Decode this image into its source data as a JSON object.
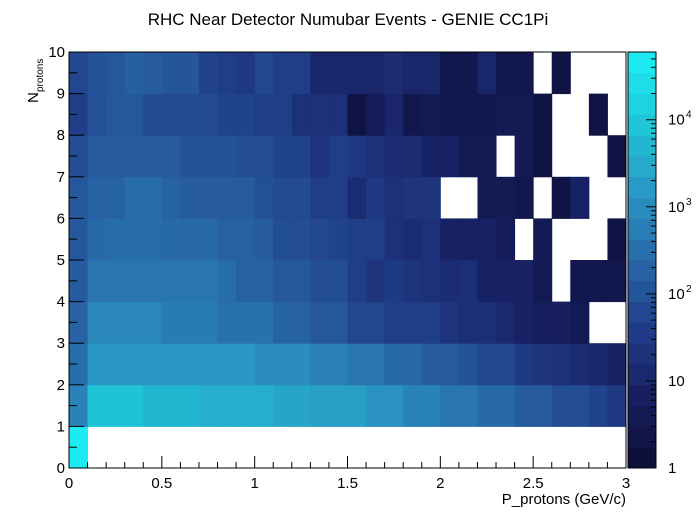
{
  "chart_data": {
    "type": "heatmap",
    "title": "RHC Near Detector Numubar Events - GENIE CC1Pi",
    "xlabel": "P_protons (GeV/c)",
    "ylabel_main": "N",
    "ylabel_sub": "protons",
    "xlim": [
      0,
      3
    ],
    "ylim": [
      0,
      10
    ],
    "zlim": [
      1,
      60000
    ],
    "zscale": "log",
    "x_ticks": [
      0,
      0.5,
      1,
      1.5,
      2,
      2.5,
      3
    ],
    "x_tick_labels": [
      "0",
      "0.5",
      "1",
      "1.5",
      "2",
      "2.5",
      "3"
    ],
    "y_ticks": [
      0,
      1,
      2,
      3,
      4,
      5,
      6,
      7,
      8,
      9,
      10
    ],
    "y_tick_labels": [
      "0",
      "1",
      "2",
      "3",
      "4",
      "5",
      "6",
      "7",
      "8",
      "9",
      "10"
    ],
    "colorbar_ticks": [
      1,
      10,
      100,
      1000,
      10000
    ],
    "colorbar_labels": [
      "1",
      "10",
      "10",
      "10",
      "10"
    ],
    "colorbar_exponents": [
      "",
      "",
      "2",
      "3",
      "4"
    ],
    "palette": [
      "#0c0e36",
      "#161e5e",
      "#203c88",
      "#2868a8",
      "#2a98c4",
      "#1ec8d8",
      "#1eeef6"
    ],
    "x_edges": [
      0,
      0.1,
      0.2,
      0.3,
      0.4,
      0.5,
      0.6,
      0.7,
      0.8,
      0.9,
      1.0,
      1.1,
      1.2,
      1.3,
      1.4,
      1.5,
      1.6,
      1.7,
      1.8,
      1.9,
      2.0,
      2.1,
      2.2,
      2.3,
      2.4,
      2.5,
      2.6,
      2.7,
      2.8,
      2.9,
      3.0
    ],
    "y_edges": [
      0,
      1,
      2,
      3,
      4,
      5,
      6,
      7,
      8,
      9,
      10
    ],
    "rows": [
      [
        50000,
        0,
        0,
        0,
        0,
        0,
        0,
        0,
        0,
        0,
        0,
        0,
        0,
        0,
        0,
        0,
        0,
        0,
        0,
        0,
        0,
        0,
        0,
        0,
        0,
        0,
        0,
        0,
        0,
        0
      ],
      [
        700,
        8000,
        8000,
        8000,
        5000,
        5000,
        5000,
        3500,
        3500,
        3500,
        3500,
        2500,
        2500,
        2000,
        2000,
        2000,
        1200,
        1200,
        700,
        700,
        400,
        400,
        250,
        250,
        150,
        150,
        80,
        80,
        50,
        30
      ],
      [
        300,
        1500,
        1500,
        1500,
        1500,
        1500,
        1500,
        1500,
        1500,
        1500,
        1000,
        1000,
        1000,
        600,
        600,
        400,
        400,
        250,
        250,
        150,
        150,
        100,
        60,
        60,
        30,
        25,
        20,
        15,
        10,
        8
      ],
      [
        200,
        800,
        800,
        800,
        800,
        500,
        500,
        500,
        350,
        350,
        350,
        200,
        200,
        120,
        120,
        60,
        60,
        40,
        40,
        40,
        25,
        18,
        18,
        12,
        8,
        6,
        6,
        4,
        0,
        0
      ],
      [
        150,
        400,
        400,
        400,
        400,
        400,
        400,
        400,
        300,
        180,
        180,
        120,
        120,
        80,
        80,
        40,
        25,
        35,
        25,
        20,
        15,
        18,
        8,
        8,
        8,
        4,
        0,
        3,
        3,
        3
      ],
      [
        120,
        250,
        300,
        300,
        300,
        250,
        250,
        250,
        180,
        180,
        150,
        80,
        80,
        60,
        50,
        40,
        40,
        20,
        15,
        20,
        8,
        8,
        8,
        5,
        0,
        4,
        0,
        0,
        0,
        2
      ],
      [
        120,
        200,
        200,
        300,
        300,
        200,
        140,
        140,
        140,
        140,
        90,
        70,
        70,
        40,
        40,
        15,
        30,
        20,
        25,
        25,
        0,
        0,
        4,
        4,
        3,
        0,
        2,
        8,
        0,
        0
      ],
      [
        80,
        150,
        150,
        150,
        150,
        150,
        100,
        100,
        100,
        80,
        80,
        50,
        50,
        25,
        40,
        30,
        20,
        15,
        15,
        8,
        8,
        4,
        4,
        0,
        4,
        2,
        0,
        0,
        0,
        2
      ],
      [
        40,
        90,
        120,
        120,
        70,
        70,
        70,
        70,
        50,
        50,
        40,
        40,
        20,
        20,
        20,
        2,
        5,
        10,
        3,
        4,
        3,
        3,
        3,
        4,
        4,
        2,
        0,
        0,
        2,
        0
      ],
      [
        60,
        100,
        120,
        170,
        150,
        110,
        110,
        50,
        40,
        30,
        60,
        40,
        40,
        10,
        10,
        10,
        10,
        15,
        10,
        10,
        3,
        3,
        10,
        3,
        3,
        0,
        2,
        0,
        0,
        0
      ]
    ]
  }
}
